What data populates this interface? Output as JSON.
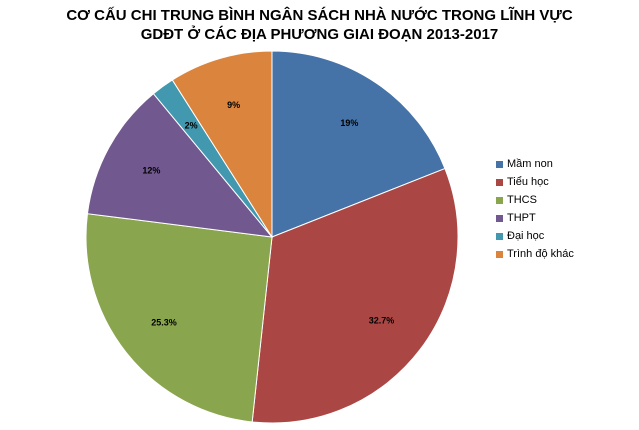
{
  "chart_data": {
    "type": "pie",
    "title": [
      "CƠ CẤU CHI TRUNG BÌNH NGÂN SÁCH NHÀ NƯỚC TRONG LĨNH VỰC",
      "GDĐT Ở CÁC ĐỊA PHƯƠNG GIAI ĐOẠN 2013-2017"
    ],
    "categories": [
      "Mầm non",
      "Tiểu học",
      "THCS",
      "THPT",
      "Đại học",
      "Trình độ khác"
    ],
    "values": [
      19,
      32.7,
      25.3,
      12,
      2,
      9
    ],
    "labels": [
      "19%",
      "32.7%",
      "25.3%",
      "12%",
      "2%",
      "9%"
    ],
    "colors": [
      "#4572A7",
      "#AA4643",
      "#89A54E",
      "#71588F",
      "#4198AF",
      "#DB843D"
    ],
    "start_angle": "12 o'clock",
    "direction": "clockwise",
    "legend_position": "right"
  }
}
